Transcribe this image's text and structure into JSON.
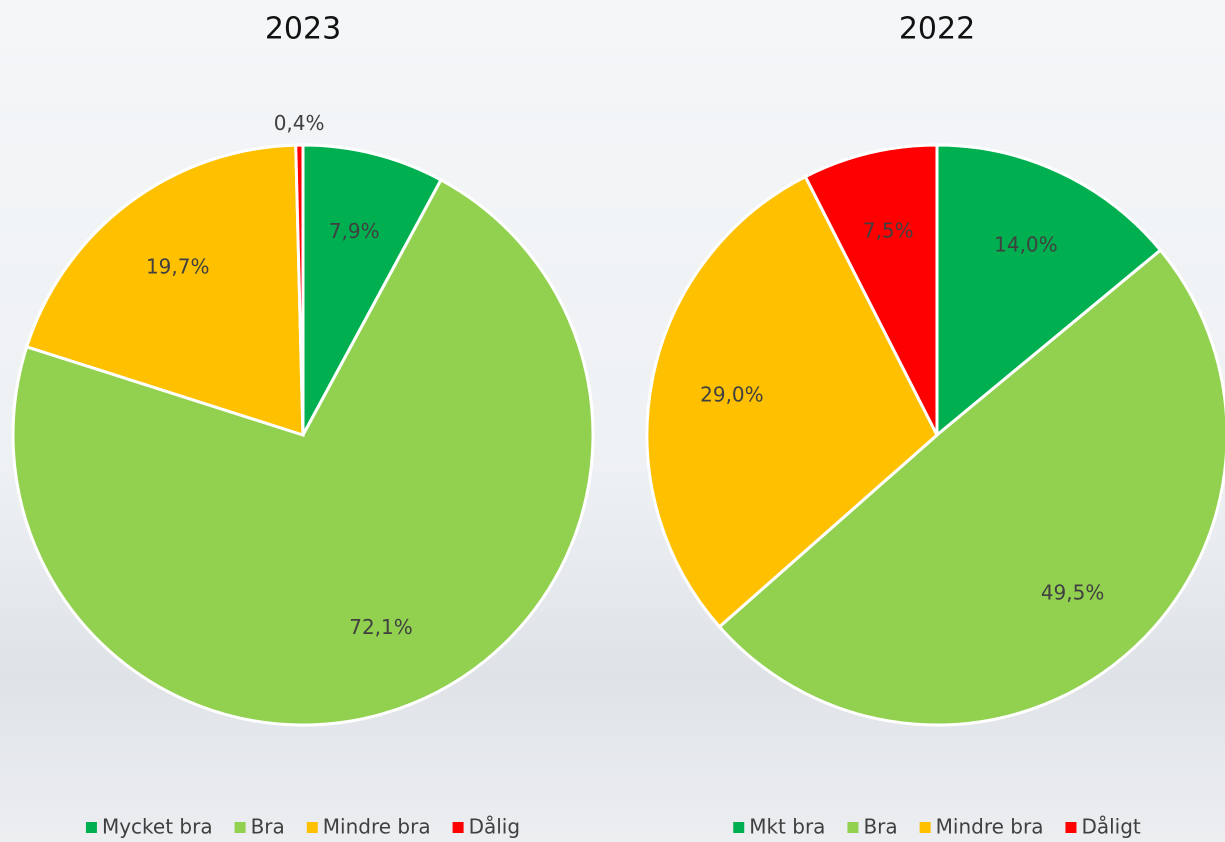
{
  "chart_data": [
    {
      "type": "pie",
      "title": "2023",
      "categories": [
        "Mycket bra",
        "Bra",
        "Mindre bra",
        "Dålig"
      ],
      "values": [
        7.9,
        72.1,
        19.7,
        0.4
      ],
      "value_labels": [
        "7,9%",
        "72,1%",
        "19,7%",
        "0,4%"
      ],
      "colors": [
        "#00b050",
        "#92d050",
        "#ffc000",
        "#ff0000"
      ],
      "legend": "bottom"
    },
    {
      "type": "pie",
      "title": "2022",
      "categories": [
        "Mkt bra",
        "Bra",
        "Mindre bra",
        "Dåligt"
      ],
      "values": [
        14.0,
        49.5,
        29.0,
        7.5
      ],
      "value_labels": [
        "14,0%",
        "49,5%",
        "29,0%",
        "7,5%"
      ],
      "colors": [
        "#00b050",
        "#92d050",
        "#ffc000",
        "#ff0000"
      ],
      "legend": "bottom"
    }
  ]
}
